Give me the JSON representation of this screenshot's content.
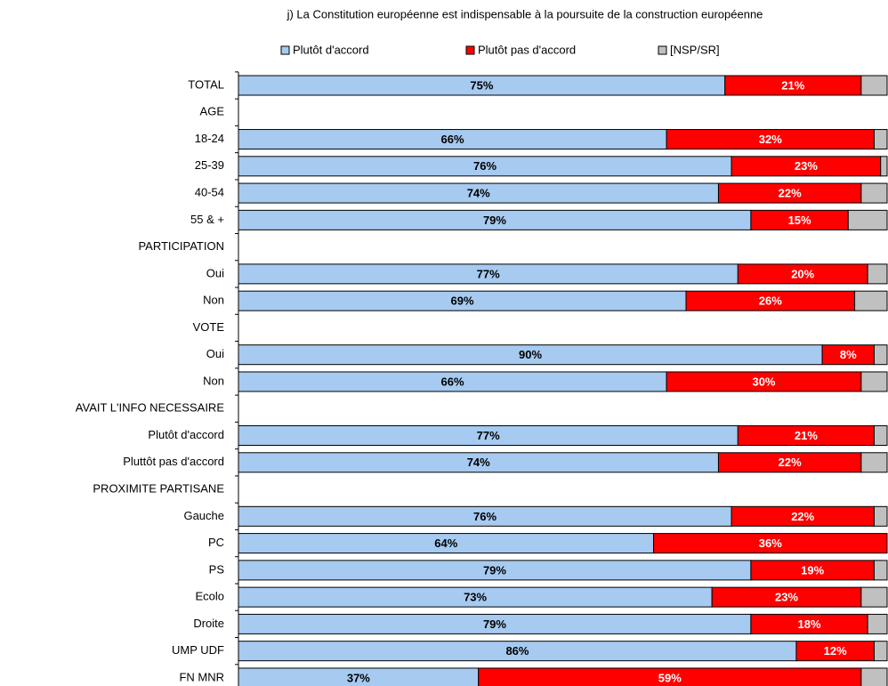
{
  "chart_data": {
    "type": "stacked-barh",
    "title": "j) La Constitution européenne est indispensable à la poursuite de la construction européenne",
    "categories": [
      "TOTAL",
      "AGE",
      "18-24",
      "25-39",
      "40-54",
      "55 & +",
      "PARTICIPATION",
      "Oui",
      "Non",
      "VOTE",
      "Oui",
      "Non",
      "AVAIT L'INFO NECESSAIRE",
      "Plutôt d'accord",
      "Pluttôt pas d'accord",
      "PROXIMITE PARTISANE",
      "Gauche",
      "PC",
      "PS",
      "Ecolo",
      "Droite",
      "UMP UDF",
      "FN MNR"
    ],
    "xlim": [
      0,
      100
    ],
    "series": [
      {
        "name": "Plutôt d'accord",
        "color": "#a6caf0",
        "values": [
          75,
          null,
          66,
          76,
          74,
          79,
          null,
          77,
          69,
          null,
          90,
          66,
          null,
          77,
          74,
          null,
          76,
          64,
          79,
          73,
          79,
          86,
          37
        ],
        "value_labels": [
          "75%",
          null,
          "66%",
          "76%",
          "74%",
          "79%",
          null,
          "77%",
          "69%",
          null,
          "90%",
          "66%",
          null,
          "77%",
          "74%",
          null,
          "76%",
          "64%",
          "79%",
          "73%",
          "79%",
          "86%",
          "37%"
        ]
      },
      {
        "name": "Plutôt pas d'accord",
        "color": "#ff0000",
        "values": [
          21,
          null,
          32,
          23,
          22,
          15,
          null,
          20,
          26,
          null,
          8,
          30,
          null,
          21,
          22,
          null,
          22,
          36,
          19,
          23,
          18,
          12,
          59
        ],
        "value_labels": [
          "21%",
          null,
          "32%",
          "23%",
          "22%",
          "15%",
          null,
          "20%",
          "26%",
          null,
          "8%",
          "30%",
          null,
          "21%",
          "22%",
          null,
          "22%",
          "36%",
          "19%",
          "23%",
          "18%",
          "12%",
          "59%"
        ]
      },
      {
        "name": "[NSP/SR]",
        "color": "#c0c0c0",
        "values": [
          4,
          null,
          2,
          1,
          4,
          6,
          null,
          3,
          5,
          null,
          2,
          4,
          null,
          2,
          4,
          null,
          2,
          0,
          2,
          4,
          3,
          2,
          4
        ]
      }
    ],
    "legend": "top"
  }
}
